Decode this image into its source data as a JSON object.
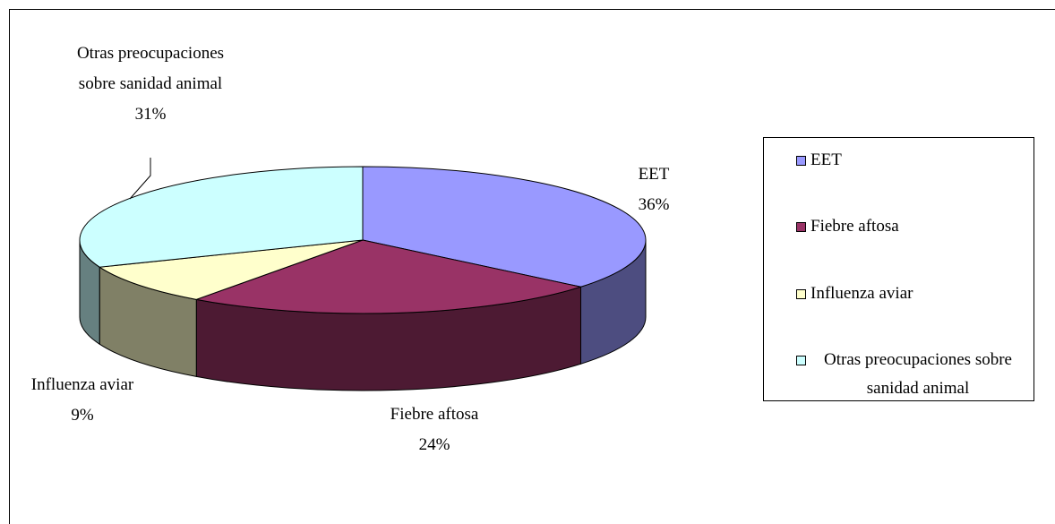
{
  "chart_data": {
    "type": "pie",
    "categories": [
      "EET",
      "Fiebre aftosa",
      "Influenza aviar",
      "Otras preocupaciones sobre sanidad animal"
    ],
    "values": [
      36,
      24,
      9,
      31
    ],
    "value_labels": [
      "36%",
      "24%",
      "9%",
      "31%"
    ],
    "colors": [
      "#9999ff",
      "#993366",
      "#ffffcc",
      "#ccffff"
    ],
    "legend": "right"
  }
}
